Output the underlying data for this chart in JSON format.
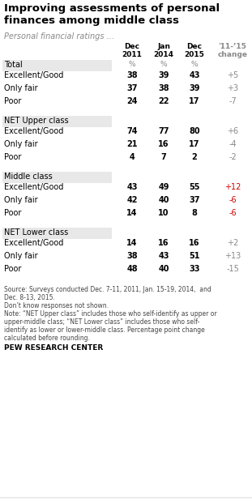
{
  "title": "Improving assessments of personal\nfinances among middle class",
  "subtitle": "Personal financial ratings ...",
  "col_headers": [
    "Dec\n2011",
    "Jan\n2014",
    "Dec\n2015",
    "'11-’15\nchange"
  ],
  "col_header_colors": [
    "#000000",
    "#000000",
    "#000000",
    "#888888"
  ],
  "sections": [
    {
      "header": "Total",
      "header_bg": "#e8e8e8",
      "show_pct": true,
      "rows": [
        {
          "label": "Excellent/Good",
          "vals": [
            "38",
            "39",
            "43"
          ],
          "change": "+5",
          "change_color": "#888888"
        },
        {
          "label": "Only fair",
          "vals": [
            "37",
            "38",
            "39"
          ],
          "change": "+3",
          "change_color": "#888888"
        },
        {
          "label": "Poor",
          "vals": [
            "24",
            "22",
            "17"
          ],
          "change": "-7",
          "change_color": "#888888"
        }
      ]
    },
    {
      "header": "NET Upper class",
      "header_bg": "#e8e8e8",
      "show_pct": false,
      "rows": [
        {
          "label": "Excellent/Good",
          "vals": [
            "74",
            "77",
            "80"
          ],
          "change": "+6",
          "change_color": "#888888"
        },
        {
          "label": "Only fair",
          "vals": [
            "21",
            "16",
            "17"
          ],
          "change": "-4",
          "change_color": "#888888"
        },
        {
          "label": "Poor",
          "vals": [
            "4",
            "7",
            "2"
          ],
          "change": "-2",
          "change_color": "#888888"
        }
      ]
    },
    {
      "header": "Middle class",
      "header_bg": "#e8e8e8",
      "show_pct": false,
      "rows": [
        {
          "label": "Excellent/Good",
          "vals": [
            "43",
            "49",
            "55"
          ],
          "change": "+12",
          "change_color": "#cc0000"
        },
        {
          "label": "Only fair",
          "vals": [
            "42",
            "40",
            "37"
          ],
          "change": "-6",
          "change_color": "#cc0000"
        },
        {
          "label": "Poor",
          "vals": [
            "14",
            "10",
            "8"
          ],
          "change": "-6",
          "change_color": "#cc0000"
        }
      ]
    },
    {
      "header": "NET Lower class",
      "header_bg": "#e8e8e8",
      "show_pct": false,
      "rows": [
        {
          "label": "Excellent/Good",
          "vals": [
            "14",
            "16",
            "16"
          ],
          "change": "+2",
          "change_color": "#888888"
        },
        {
          "label": "Only fair",
          "vals": [
            "38",
            "43",
            "51"
          ],
          "change": "+13",
          "change_color": "#888888"
        },
        {
          "label": "Poor",
          "vals": [
            "48",
            "40",
            "33"
          ],
          "change": "-15",
          "change_color": "#888888"
        }
      ]
    }
  ],
  "footer_source": "Source: Surveys conducted Dec. 7-11, 2011, Jan. 15-19, 2014,  and\nDec. 8-13, 2015.\nDon’t know responses not shown.\nNote: “NET Upper class” includes those who self-identify as upper or\nupper-middle class; “NET Lower class” includes those who self-\nidentify as lower or lower-middle class. Percentage point change\ncalculated before rounding.",
  "pew_label": "PEW RESEARCH CENTER",
  "bg_color": "#ffffff",
  "header_bg": "#e8e8e8",
  "title_color": "#000000",
  "subtitle_color": "#888888",
  "label_color": "#000000",
  "value_color": "#000000",
  "pct_color": "#888888"
}
